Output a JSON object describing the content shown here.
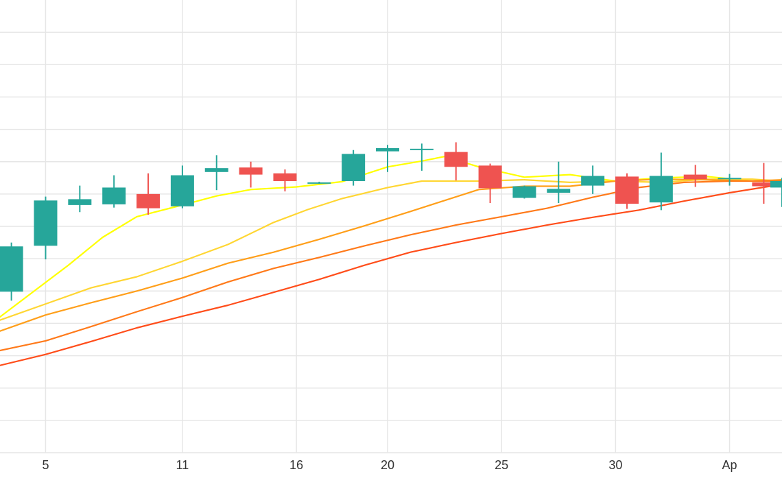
{
  "chart_data": {
    "type": "candlestick",
    "title": "",
    "xlabel": "",
    "ylabel": "",
    "grid": true,
    "legend": "none",
    "x_tick_labels": [
      "5",
      "11",
      "16",
      "20",
      "25",
      "30",
      "Ap"
    ],
    "x_ticks": [
      5,
      11,
      16,
      20,
      25,
      30,
      35
    ],
    "xlim": [
      3,
      37.3
    ],
    "ylim": [
      0,
      700
    ],
    "colors": {
      "up": "#26a69a",
      "down": "#ef5350",
      "grid": "#e6e6e6",
      "ma_fast": "#ffff00",
      "ma_2": "#ffd633",
      "ma_3": "#ff9f1a",
      "ma_4": "#ff7a1a",
      "ma_5": "#ff4d1a"
    },
    "candles": [
      {
        "x": 3.5,
        "open": 249,
        "close": 319,
        "high": 325,
        "low": 235
      },
      {
        "x": 5.0,
        "open": 320,
        "close": 390,
        "high": 396,
        "low": 299
      },
      {
        "x": 6.5,
        "open": 383,
        "close": 392,
        "high": 413,
        "low": 372
      },
      {
        "x": 8.0,
        "open": 384,
        "close": 410,
        "high": 429,
        "low": 379
      },
      {
        "x": 9.5,
        "open": 400,
        "close": 378,
        "high": 432,
        "low": 368
      },
      {
        "x": 11.0,
        "open": 381,
        "close": 429,
        "high": 444,
        "low": 378
      },
      {
        "x": 12.5,
        "open": 434,
        "close": 440,
        "high": 460,
        "low": 406
      },
      {
        "x": 14.0,
        "open": 441,
        "close": 430,
        "high": 450,
        "low": 410
      },
      {
        "x": 15.5,
        "open": 432,
        "close": 420,
        "high": 438,
        "low": 404
      },
      {
        "x": 17.0,
        "open": 418,
        "close": 418,
        "high": 419,
        "low": 416
      },
      {
        "x": 18.5,
        "open": 420,
        "close": 462,
        "high": 468,
        "low": 413
      },
      {
        "x": 20.0,
        "open": 466,
        "close": 471,
        "high": 476,
        "low": 434
      },
      {
        "x": 21.5,
        "open": 470,
        "close": 470,
        "high": 478,
        "low": 436
      },
      {
        "x": 23.0,
        "open": 465,
        "close": 442,
        "high": 480,
        "low": 421
      },
      {
        "x": 24.5,
        "open": 444,
        "close": 409,
        "high": 447,
        "low": 386
      },
      {
        "x": 26.0,
        "open": 394,
        "close": 412,
        "high": 413,
        "low": 393
      },
      {
        "x": 27.5,
        "open": 402,
        "close": 408,
        "high": 450,
        "low": 386
      },
      {
        "x": 29.0,
        "open": 413,
        "close": 428,
        "high": 444,
        "low": 400
      },
      {
        "x": 30.5,
        "open": 427,
        "close": 385,
        "high": 432,
        "low": 377
      },
      {
        "x": 32.0,
        "open": 387,
        "close": 428,
        "high": 464,
        "low": 375
      },
      {
        "x": 33.5,
        "open": 430,
        "close": 423,
        "high": 445,
        "low": 411
      },
      {
        "x": 35.0,
        "open": 425,
        "close": 425,
        "high": 431,
        "low": 413
      },
      {
        "x": 36.5,
        "open": 418,
        "close": 412,
        "high": 448,
        "low": 385
      },
      {
        "x": 37.3,
        "open": 410,
        "close": 420,
        "high": 425,
        "low": 380
      }
    ],
    "series": [
      {
        "values": [
          [
            3,
            210
          ],
          [
            4.5,
            250
          ],
          [
            6,
            290
          ],
          [
            7.5,
            333
          ],
          [
            9,
            365
          ],
          [
            11,
            383
          ],
          [
            12.5,
            397
          ],
          [
            14,
            407
          ],
          [
            16,
            411
          ],
          [
            18,
            419
          ],
          [
            20,
            442
          ],
          [
            21.5,
            451
          ],
          [
            22.5,
            458
          ],
          [
            24,
            442
          ],
          [
            26,
            426
          ],
          [
            28,
            430
          ],
          [
            30,
            420
          ],
          [
            32,
            425
          ],
          [
            34,
            427
          ],
          [
            36,
            420
          ],
          [
            37.3,
            420
          ]
        ]
      },
      {
        "values": [
          [
            3,
            205
          ],
          [
            5,
            230
          ],
          [
            7,
            255
          ],
          [
            9,
            272
          ],
          [
            11,
            296
          ],
          [
            13,
            322
          ],
          [
            15,
            356
          ],
          [
            16.5,
            376
          ],
          [
            18,
            393
          ],
          [
            20,
            410
          ],
          [
            21.5,
            420
          ],
          [
            22.5,
            420
          ],
          [
            24,
            420
          ],
          [
            26,
            422
          ],
          [
            28,
            418
          ],
          [
            30,
            420
          ],
          [
            32,
            418
          ],
          [
            34,
            423
          ],
          [
            36,
            423
          ],
          [
            37.3,
            420
          ]
        ]
      },
      {
        "values": [
          [
            3,
            188
          ],
          [
            5,
            213
          ],
          [
            7,
            232
          ],
          [
            9,
            250
          ],
          [
            11,
            270
          ],
          [
            13,
            293
          ],
          [
            15,
            310
          ],
          [
            17,
            330
          ],
          [
            19,
            351
          ],
          [
            21,
            373
          ],
          [
            22.5,
            390
          ],
          [
            24,
            407
          ],
          [
            26,
            412
          ],
          [
            28,
            412
          ],
          [
            30,
            420
          ],
          [
            32,
            423
          ],
          [
            34,
            422
          ],
          [
            36,
            420
          ],
          [
            37.3,
            422
          ]
        ]
      },
      {
        "values": [
          [
            3,
            158
          ],
          [
            5,
            173
          ],
          [
            7,
            195
          ],
          [
            9,
            218
          ],
          [
            11,
            240
          ],
          [
            13,
            264
          ],
          [
            15,
            285
          ],
          [
            17,
            302
          ],
          [
            19,
            320
          ],
          [
            21,
            337
          ],
          [
            23,
            352
          ],
          [
            25,
            365
          ],
          [
            27,
            378
          ],
          [
            29,
            395
          ],
          [
            31,
            410
          ],
          [
            33,
            418
          ],
          [
            35,
            420
          ],
          [
            37.3,
            420
          ]
        ]
      },
      {
        "values": [
          [
            3,
            135
          ],
          [
            5,
            152
          ],
          [
            7,
            172
          ],
          [
            9,
            193
          ],
          [
            11,
            211
          ],
          [
            13,
            228
          ],
          [
            15,
            248
          ],
          [
            17,
            268
          ],
          [
            19,
            290
          ],
          [
            21,
            310
          ],
          [
            23,
            325
          ],
          [
            25,
            339
          ],
          [
            27,
            352
          ],
          [
            29,
            364
          ],
          [
            31,
            375
          ],
          [
            33,
            389
          ],
          [
            35,
            402
          ],
          [
            37.3,
            415
          ]
        ]
      }
    ]
  }
}
